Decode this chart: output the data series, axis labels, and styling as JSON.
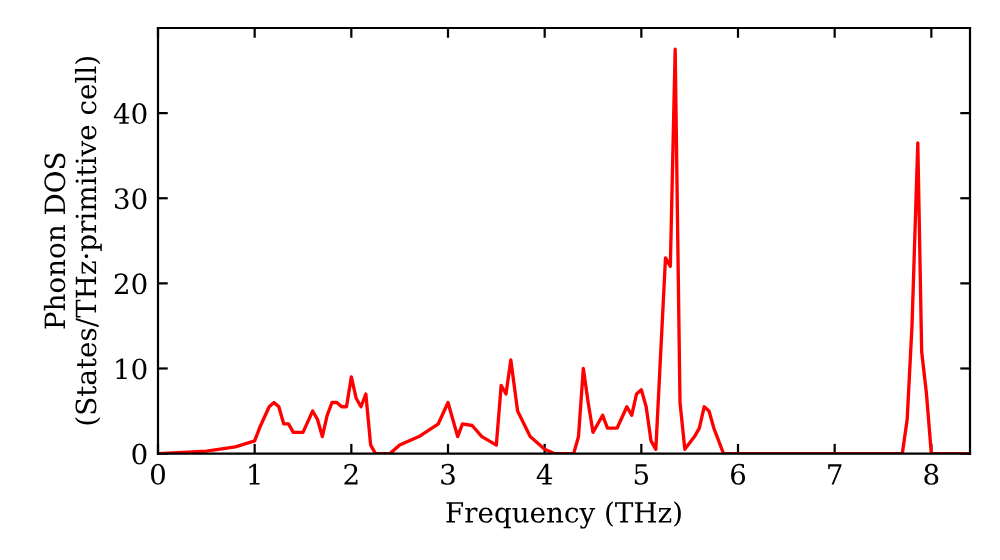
{
  "chart_data": {
    "type": "line",
    "xlabel": "Frequency (THz)",
    "ylabel": "Phonon DOS\n(States/THz·primitive cell)",
    "xlim": [
      0,
      8.4
    ],
    "ylim": [
      0,
      50
    ],
    "xticks": [
      0,
      1,
      2,
      3,
      4,
      5,
      6,
      7,
      8
    ],
    "yticks": [
      0,
      10,
      20,
      30,
      40
    ],
    "marker": "none",
    "line_style": "solid",
    "series": [
      {
        "color": "#ff0000",
        "x": [
          0,
          0.5,
          0.8,
          1.0,
          1.05,
          1.15,
          1.2,
          1.25,
          1.3,
          1.35,
          1.4,
          1.5,
          1.6,
          1.65,
          1.7,
          1.75,
          1.8,
          1.85,
          1.9,
          1.95,
          2.0,
          2.05,
          2.1,
          2.15,
          2.2,
          2.25,
          2.4,
          2.5,
          2.7,
          2.9,
          3.0,
          3.05,
          3.1,
          3.15,
          3.25,
          3.35,
          3.5,
          3.55,
          3.6,
          3.65,
          3.72,
          3.85,
          4.0,
          4.1,
          4.3,
          4.35,
          4.4,
          4.45,
          4.5,
          4.6,
          4.65,
          4.75,
          4.85,
          4.9,
          4.95,
          5.0,
          5.05,
          5.1,
          5.15,
          5.25,
          5.3,
          5.35,
          5.4,
          5.45,
          5.55,
          5.6,
          5.65,
          5.7,
          5.75,
          5.85,
          6.0,
          7.7,
          7.75,
          7.8,
          7.86,
          7.9,
          7.95,
          8.0,
          8.4
        ],
        "values": [
          0,
          0.3,
          0.8,
          1.5,
          3,
          5.5,
          6,
          5.5,
          3.5,
          3.5,
          2.5,
          2.5,
          5,
          4,
          2,
          4.5,
          6,
          6,
          5.5,
          5.5,
          9,
          6.5,
          5.5,
          7,
          1,
          0,
          0,
          1,
          2,
          3.5,
          6,
          4,
          2,
          3.5,
          3.3,
          2,
          1,
          8,
          7,
          11,
          5,
          2,
          0.5,
          0,
          0,
          2,
          10,
          6,
          2.5,
          4.5,
          3,
          3,
          5.5,
          4.5,
          7,
          7.5,
          5.5,
          1.5,
          0.5,
          23,
          22,
          47.5,
          6,
          0.5,
          2,
          3,
          5.5,
          5,
          3,
          0,
          0,
          0,
          4,
          15,
          36.5,
          12,
          7,
          0,
          0
        ]
      }
    ]
  }
}
